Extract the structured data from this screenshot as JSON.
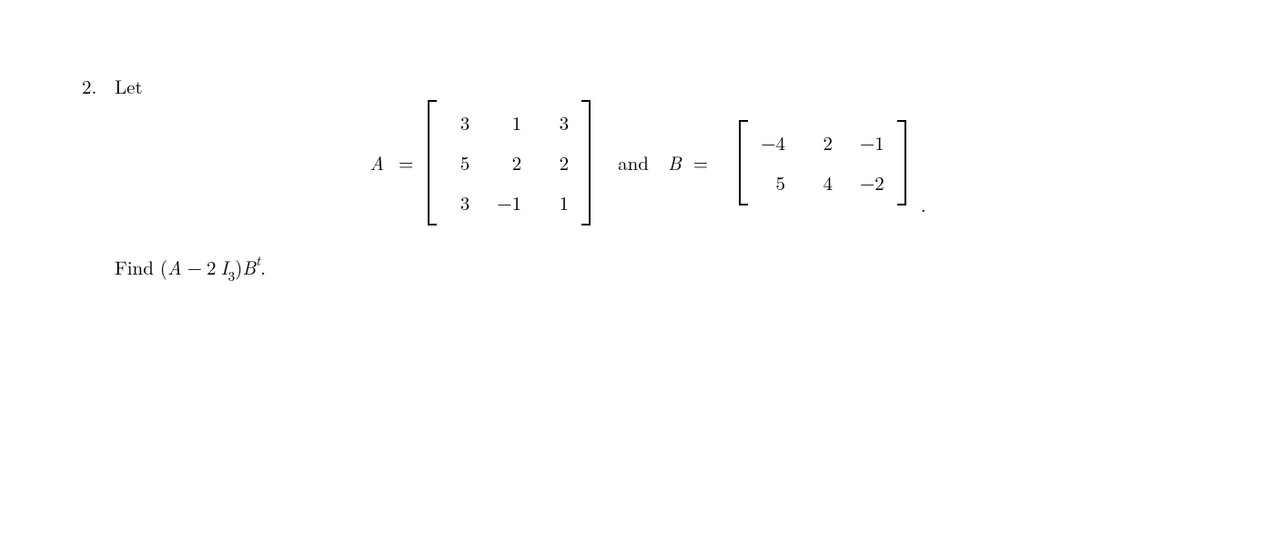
{
  "problem": {
    "number": "2.",
    "lead": "Let",
    "lhsA": "A",
    "lhsB": "B",
    "eq": "=",
    "and": "and",
    "period": ".",
    "matrixA": {
      "rows": 3,
      "cols": 3,
      "cells": [
        "3",
        "1",
        "3",
        "5",
        "2",
        "2",
        "3",
        "−1",
        "1"
      ]
    },
    "matrixB": {
      "rows": 2,
      "cols": 3,
      "cells": [
        "−4",
        "2",
        "−1",
        "5",
        "4",
        "−2"
      ]
    },
    "ask_prefix": "Find (",
    "ask_A": "A",
    "ask_minus": " − 2 ",
    "ask_I": "I",
    "ask_I_sub": "3",
    "ask_close": ")",
    "ask_B": "B",
    "ask_B_sup": "t",
    "ask_period": "."
  },
  "style": {
    "font_size_body": 21,
    "text_color": "#000000",
    "background_color": "#ffffff",
    "matrix_col_gap": 30,
    "matrix_row_gap": 14
  }
}
